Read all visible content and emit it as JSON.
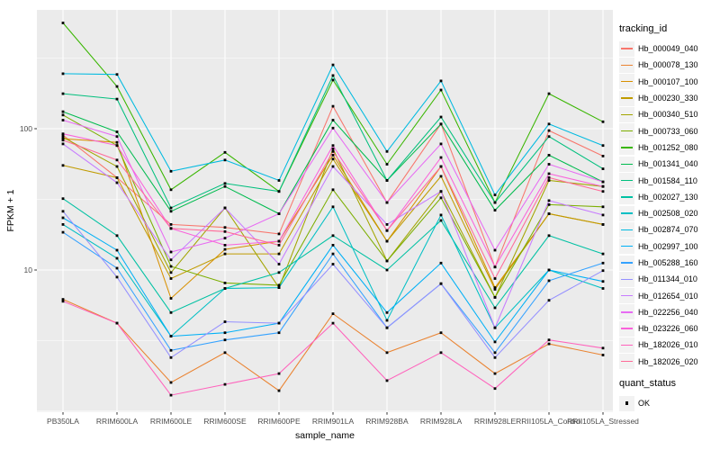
{
  "legend": {
    "title": "tracking_id"
  },
  "legend2": {
    "title": "quant_status",
    "items": [
      "OK"
    ]
  },
  "axes": {
    "x_title": "sample_name",
    "y_title": "FPKM + 1",
    "y_tick_labels": [
      "100",
      "10"
    ]
  },
  "colors": {
    "panel_bg": "#EBEBEB",
    "grid": "#FFFFFF",
    "tick_text": "#4D4D4D",
    "tick_mark": "#333333",
    "legend_key_bg": "#F2F2F2",
    "point": "#000000"
  },
  "chart_data": {
    "type": "line",
    "title": "",
    "xlabel": "sample_name",
    "ylabel": "FPKM + 1",
    "x_type": "categorical",
    "y_scale": "log10",
    "ylim": [
      1,
      700
    ],
    "y_major": [
      1,
      10,
      100
    ],
    "y_minor": [
      3.162,
      31.62,
      316.2
    ],
    "y_ticks_labeled": [
      100,
      10
    ],
    "grid": "on",
    "legend_position": "right",
    "point_marker": {
      "shape": "filled-square",
      "color": "#000000",
      "legend": "quant_status = OK"
    },
    "categories": [
      "PB350LA",
      "RRIM600LA",
      "RRIM600LE",
      "RRIM600SE",
      "RRIM600PE",
      "RRIM901LA",
      "RRIM928BA",
      "RRIM928LA",
      "RRIM928LE",
      "RRII105LA_Control",
      "RRII105LA_Stressed"
    ],
    "series": [
      {
        "name": "Hb_000049_040",
        "color": "#F8766D",
        "values": [
          90,
          45,
          21,
          20,
          18,
          144,
          30,
          108,
          10.5,
          97,
          64
        ]
      },
      {
        "name": "Hb_000078_130",
        "color": "#EA8331",
        "values": [
          6.2,
          4.2,
          1.6,
          2.6,
          1.4,
          4.9,
          2.6,
          3.6,
          1.85,
          3.0,
          2.5
        ]
      },
      {
        "name": "Hb_000107_100",
        "color": "#D89000",
        "values": [
          85,
          80,
          6.3,
          14,
          16,
          65,
          16,
          54,
          7.5,
          25,
          21
        ]
      },
      {
        "name": "Hb_000230_330",
        "color": "#C09B00",
        "values": [
          55,
          45,
          8.7,
          13,
          13,
          61,
          16,
          46,
          7.3,
          25,
          21
        ]
      },
      {
        "name": "Hb_000340_510",
        "color": "#A3A500",
        "values": [
          87,
          54,
          9.6,
          27.5,
          7.5,
          72,
          11.6,
          36,
          6.4,
          43,
          39
        ]
      },
      {
        "name": "Hb_000733_060",
        "color": "#7CAE00",
        "values": [
          125,
          76,
          10.6,
          8.1,
          7.8,
          37,
          11.6,
          32.4,
          6.4,
          29,
          28
        ]
      },
      {
        "name": "Hb_001252_080",
        "color": "#39B600",
        "values": [
          560,
          199,
          37,
          68,
          36,
          221,
          56,
          188,
          30,
          177,
          112
        ]
      },
      {
        "name": "Hb_001341_040",
        "color": "#00BB4E",
        "values": [
          132,
          95,
          26,
          39,
          25,
          115,
          43,
          108,
          26.5,
          65,
          42
        ]
      },
      {
        "name": "Hb_001584_110",
        "color": "#00BF7D",
        "values": [
          177,
          162,
          27.5,
          41,
          36,
          238,
          43,
          121,
          30,
          88,
          52
        ]
      },
      {
        "name": "Hb_002027_130",
        "color": "#00C1A3",
        "values": [
          32,
          17.5,
          5.0,
          7.4,
          9.6,
          17.5,
          10,
          22.4,
          5.4,
          17.5,
          13
        ]
      },
      {
        "name": "Hb_002508_020",
        "color": "#00BFC4",
        "values": [
          21,
          12.1,
          3.4,
          7.4,
          7.5,
          28,
          4.4,
          24.5,
          3.9,
          10,
          7.4
        ]
      },
      {
        "name": "Hb_002874_070",
        "color": "#00BAE0",
        "values": [
          245,
          242,
          50,
          60,
          43,
          283,
          69,
          218,
          34,
          108,
          76
        ]
      },
      {
        "name": "Hb_002997_100",
        "color": "#00B0F6",
        "values": [
          23.4,
          13.8,
          3.4,
          3.6,
          4.2,
          15,
          5.0,
          11.2,
          3.1,
          10,
          8.3
        ]
      },
      {
        "name": "Hb_005288_160",
        "color": "#35A2FF",
        "values": [
          18.5,
          10.3,
          2.7,
          3.2,
          3.6,
          13,
          3.9,
          8,
          2.6,
          8.4,
          11.2
        ]
      },
      {
        "name": "Hb_011344_010",
        "color": "#9590FF",
        "values": [
          26,
          8.9,
          2.4,
          4.3,
          4.2,
          11,
          3.9,
          8,
          2.4,
          6.1,
          9.9
        ]
      },
      {
        "name": "Hb_012654_010",
        "color": "#C77CFF",
        "values": [
          78,
          41.5,
          11.8,
          27.5,
          11,
          54,
          21,
          36,
          3.9,
          31,
          24.5
        ]
      },
      {
        "name": "Hb_022256_040",
        "color": "#E76BF3",
        "values": [
          115,
          88,
          13.4,
          16.8,
          25,
          101,
          30,
          78,
          13.8,
          56,
          42
        ]
      },
      {
        "name": "Hb_023226_060",
        "color": "#FA62DB",
        "values": [
          92,
          76,
          19.7,
          15,
          16,
          76,
          19,
          62.5,
          10.5,
          48,
          39
        ]
      },
      {
        "name": "Hb_182026_010",
        "color": "#FF62BC",
        "values": [
          6.0,
          4.2,
          1.3,
          1.55,
          1.85,
          4.2,
          1.65,
          2.6,
          1.45,
          3.2,
          2.8
        ]
      },
      {
        "name": "Hb_182026_020",
        "color": "#FF6A98",
        "values": [
          83,
          60,
          19.7,
          18.7,
          15,
          69,
          19,
          54,
          8.7,
          45,
          36
        ]
      }
    ]
  }
}
